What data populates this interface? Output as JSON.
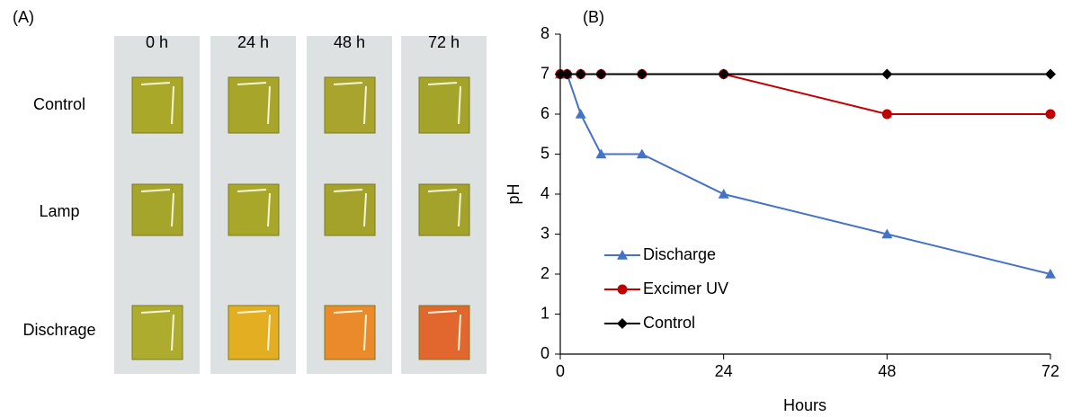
{
  "panel_a": {
    "label": "(A)",
    "columns": [
      "0 h",
      "24 h",
      "48 h",
      "72 h"
    ],
    "rows": [
      "Control",
      "Lamp",
      "Dischrage"
    ]
  },
  "chart_data": {
    "type": "line",
    "label": "(B)",
    "x_label": "Hours",
    "y_label": "pH",
    "x": [
      0,
      1,
      3,
      6,
      12,
      24,
      48,
      72
    ],
    "series": [
      {
        "name": "Discharge",
        "color": "#4472c4",
        "marker": "triangle",
        "values": [
          7,
          7,
          6,
          5,
          5,
          4,
          3,
          2
        ]
      },
      {
        "name": "Excimer UV",
        "color": "#c00000",
        "marker": "circle",
        "values": [
          7,
          7,
          7,
          7,
          7,
          7,
          6,
          6
        ]
      },
      {
        "name": "Control",
        "color": "#000000",
        "marker": "diamond",
        "values": [
          7,
          7,
          7,
          7,
          7,
          7,
          7,
          7
        ]
      }
    ],
    "xlim": [
      0,
      72
    ],
    "xticks": [
      0,
      24,
      48,
      72
    ],
    "ylim": [
      0,
      8
    ],
    "yticks": [
      0,
      1,
      2,
      3,
      4,
      5,
      6,
      7,
      8
    ],
    "grid": false,
    "legend": "lower left"
  }
}
